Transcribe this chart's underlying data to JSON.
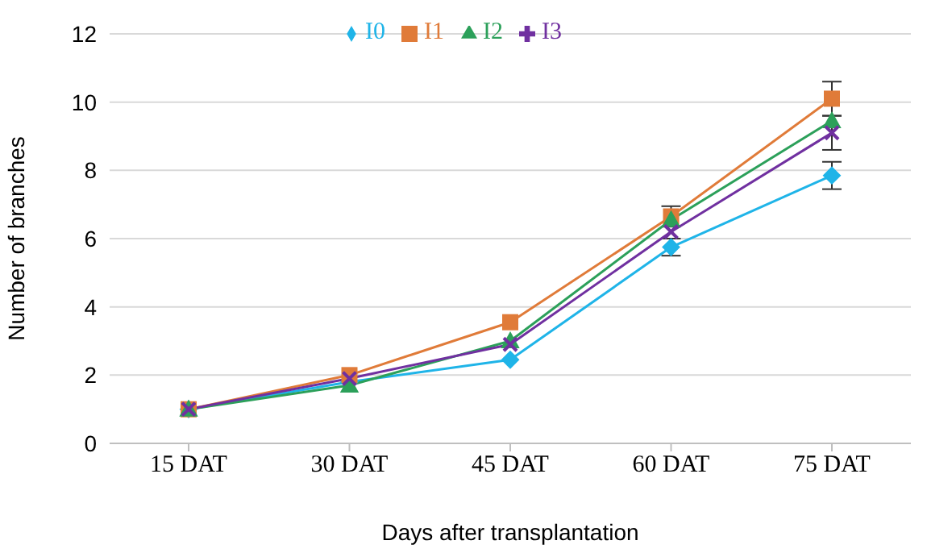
{
  "chart_data": {
    "type": "line",
    "xlabel": "Days after transplantation",
    "ylabel": "Number of branches",
    "categories": [
      "15 DAT",
      "30 DAT",
      "45 DAT",
      "60 DAT",
      "75 DAT"
    ],
    "series": [
      {
        "name": "I0",
        "color": "#1fb4e8",
        "marker": "diamond",
        "values": [
          1,
          1.8,
          2.45,
          5.75,
          7.85
        ],
        "errors": [
          null,
          null,
          null,
          0.25,
          0.4
        ]
      },
      {
        "name": "I1",
        "color": "#e07b39",
        "marker": "square",
        "values": [
          1,
          2.0,
          3.55,
          6.65,
          10.1
        ],
        "errors": [
          null,
          null,
          null,
          0.3,
          0.5
        ]
      },
      {
        "name": "I2",
        "color": "#2ca05a",
        "marker": "triangle",
        "values": [
          1,
          1.7,
          3.0,
          6.55,
          9.45
        ]
      },
      {
        "name": "I3",
        "color": "#7030a0",
        "marker": "cross",
        "values": [
          1,
          1.9,
          2.9,
          6.2,
          9.1
        ],
        "errors": [
          null,
          null,
          null,
          null,
          0.5
        ]
      }
    ],
    "ylim": [
      0,
      12
    ],
    "yticks": [
      0,
      2,
      4,
      6,
      8,
      10,
      12
    ],
    "grid": "y",
    "legend": "top",
    "line_style": "solid"
  }
}
